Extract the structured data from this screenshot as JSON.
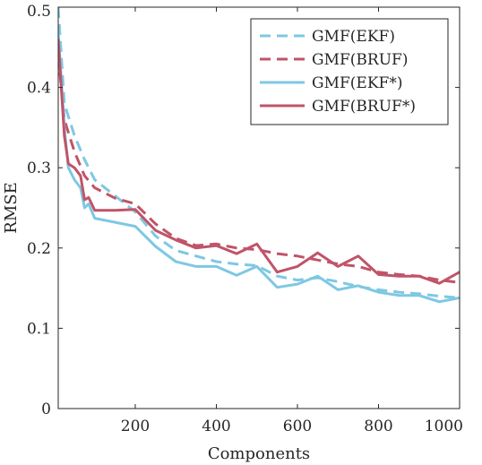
{
  "chart_data": {
    "type": "line",
    "title": "",
    "xlabel": "Components",
    "ylabel": "RMSE",
    "xlim": [
      10,
      1000
    ],
    "ylim": [
      0,
      0.5
    ],
    "xticks": [
      200,
      400,
      600,
      800,
      1000
    ],
    "yticks": [
      0,
      0.1,
      0.2,
      0.3,
      0.4,
      0.5
    ],
    "xtick_labels": [
      "200",
      "400",
      "600",
      "800",
      "1000"
    ],
    "ytick_labels": [
      "0",
      "0.1",
      "0.2",
      "0.3",
      "0.4",
      "0.5"
    ],
    "grid": false,
    "legend_position": "top-right",
    "series": [
      {
        "name": "GMF(EKF)",
        "color": "#7ec8e3",
        "dash": "dashed",
        "x": [
          10,
          25,
          50,
          75,
          100,
          150,
          200,
          250,
          300,
          350,
          400,
          450,
          500,
          550,
          600,
          650,
          700,
          750,
          800,
          850,
          900,
          950,
          1000
        ],
        "y": [
          0.5,
          0.38,
          0.34,
          0.31,
          0.285,
          0.265,
          0.245,
          0.215,
          0.197,
          0.19,
          0.183,
          0.18,
          0.178,
          0.165,
          0.16,
          0.163,
          0.158,
          0.152,
          0.148,
          0.145,
          0.143,
          0.14,
          0.138
        ]
      },
      {
        "name": "GMF(BRUF)",
        "color": "#c05468",
        "dash": "dashed",
        "x": [
          10,
          25,
          50,
          75,
          100,
          150,
          200,
          250,
          300,
          350,
          400,
          450,
          500,
          550,
          600,
          650,
          700,
          750,
          800,
          850,
          900,
          950,
          1000
        ],
        "y": [
          0.44,
          0.36,
          0.32,
          0.29,
          0.275,
          0.262,
          0.255,
          0.23,
          0.212,
          0.203,
          0.205,
          0.2,
          0.198,
          0.193,
          0.19,
          0.185,
          0.18,
          0.177,
          0.17,
          0.167,
          0.165,
          0.16,
          0.157
        ]
      },
      {
        "name": "GMF(EKF*)",
        "color": "#7ec8e3",
        "dash": "solid",
        "x": [
          10,
          25,
          35,
          50,
          65,
          75,
          85,
          100,
          150,
          200,
          250,
          300,
          350,
          400,
          450,
          500,
          550,
          600,
          650,
          700,
          750,
          800,
          850,
          900,
          950,
          1000
        ],
        "y": [
          0.47,
          0.35,
          0.3,
          0.285,
          0.275,
          0.25,
          0.255,
          0.237,
          0.232,
          0.227,
          0.202,
          0.183,
          0.177,
          0.177,
          0.166,
          0.177,
          0.151,
          0.155,
          0.165,
          0.148,
          0.153,
          0.145,
          0.141,
          0.141,
          0.133,
          0.138
        ]
      },
      {
        "name": "GMF(BRUF*)",
        "color": "#c05468",
        "dash": "solid",
        "x": [
          10,
          25,
          35,
          50,
          65,
          75,
          85,
          100,
          150,
          200,
          250,
          300,
          350,
          400,
          450,
          500,
          550,
          600,
          650,
          700,
          750,
          800,
          850,
          900,
          950,
          1000
        ],
        "y": [
          0.46,
          0.34,
          0.305,
          0.3,
          0.29,
          0.26,
          0.263,
          0.247,
          0.247,
          0.248,
          0.222,
          0.21,
          0.2,
          0.203,
          0.193,
          0.205,
          0.17,
          0.177,
          0.194,
          0.177,
          0.19,
          0.167,
          0.165,
          0.165,
          0.156,
          0.17
        ]
      }
    ]
  }
}
